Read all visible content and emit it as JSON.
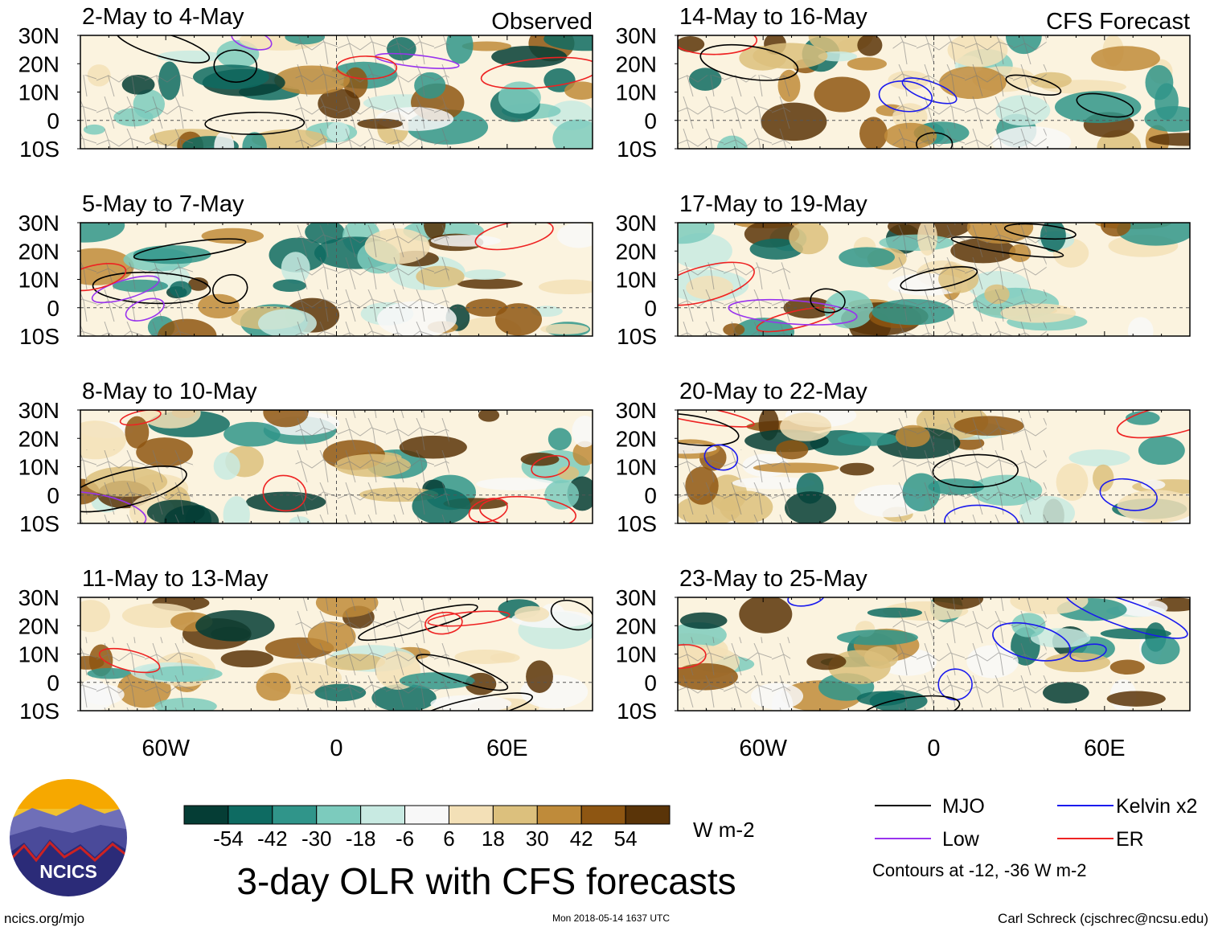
{
  "figure": {
    "title": "3-day OLR with CFS forecasts",
    "units": "W m-2",
    "source_link": "ncics.org/mjo",
    "timestamp": "Mon 2018-05-14 1637 UTC",
    "credit": "Carl Schreck (cjschrec@ncsu.edu)",
    "logo_text": "NCICS",
    "column_labels": [
      "Observed",
      "CFS Forecast"
    ],
    "contour_note": "Contours at -12, -36 W m-2"
  },
  "colors": {
    "land": "#777777",
    "mjo": "#000000",
    "kelvin": "#1a1aee",
    "low": "#9933ee",
    "er": "#ee2222"
  },
  "chart_data": {
    "type": "heatmap",
    "variable": "3-day OLR anomaly",
    "ylabels": [
      "30N",
      "20N",
      "10N",
      "0",
      "10S"
    ],
    "xlabels": [
      "60W",
      "0",
      "60E"
    ],
    "lat_range": [
      -10,
      30
    ],
    "lon_range": [
      -90,
      90
    ],
    "panels": [
      {
        "label": "2-May to 4-May",
        "column": 0,
        "row": 0,
        "badge": "Observed"
      },
      {
        "label": "5-May to 7-May",
        "column": 0,
        "row": 1
      },
      {
        "label": "8-May to 10-May",
        "column": 0,
        "row": 2
      },
      {
        "label": "11-May to 13-May",
        "column": 0,
        "row": 3
      },
      {
        "label": "14-May to 16-May",
        "column": 1,
        "row": 0,
        "badge": "CFS Forecast"
      },
      {
        "label": "17-May to 19-May",
        "column": 1,
        "row": 1
      },
      {
        "label": "20-May to 22-May",
        "column": 1,
        "row": 2
      },
      {
        "label": "23-May to 25-May",
        "column": 1,
        "row": 3
      }
    ],
    "colorbar": {
      "levels": [
        "-54",
        "-42",
        "-30",
        "-18",
        "-6",
        "6",
        "18",
        "30",
        "42",
        "54"
      ],
      "colors": [
        "#053d35",
        "#0e6b62",
        "#30958a",
        "#7ccbbd",
        "#c8eae2",
        "#f8f8f8",
        "#f3e0b7",
        "#dcc07d",
        "#bf8b3a",
        "#8e5612",
        "#5a3408"
      ]
    },
    "contour_levels": [
      -12,
      -36
    ],
    "legend": [
      {
        "name": "MJO",
        "color": "#000000"
      },
      {
        "name": "Kelvin x2",
        "color": "#1a1aee"
      },
      {
        "name": "Low",
        "color": "#9933ee"
      },
      {
        "name": "ER",
        "color": "#ee2222"
      }
    ]
  }
}
